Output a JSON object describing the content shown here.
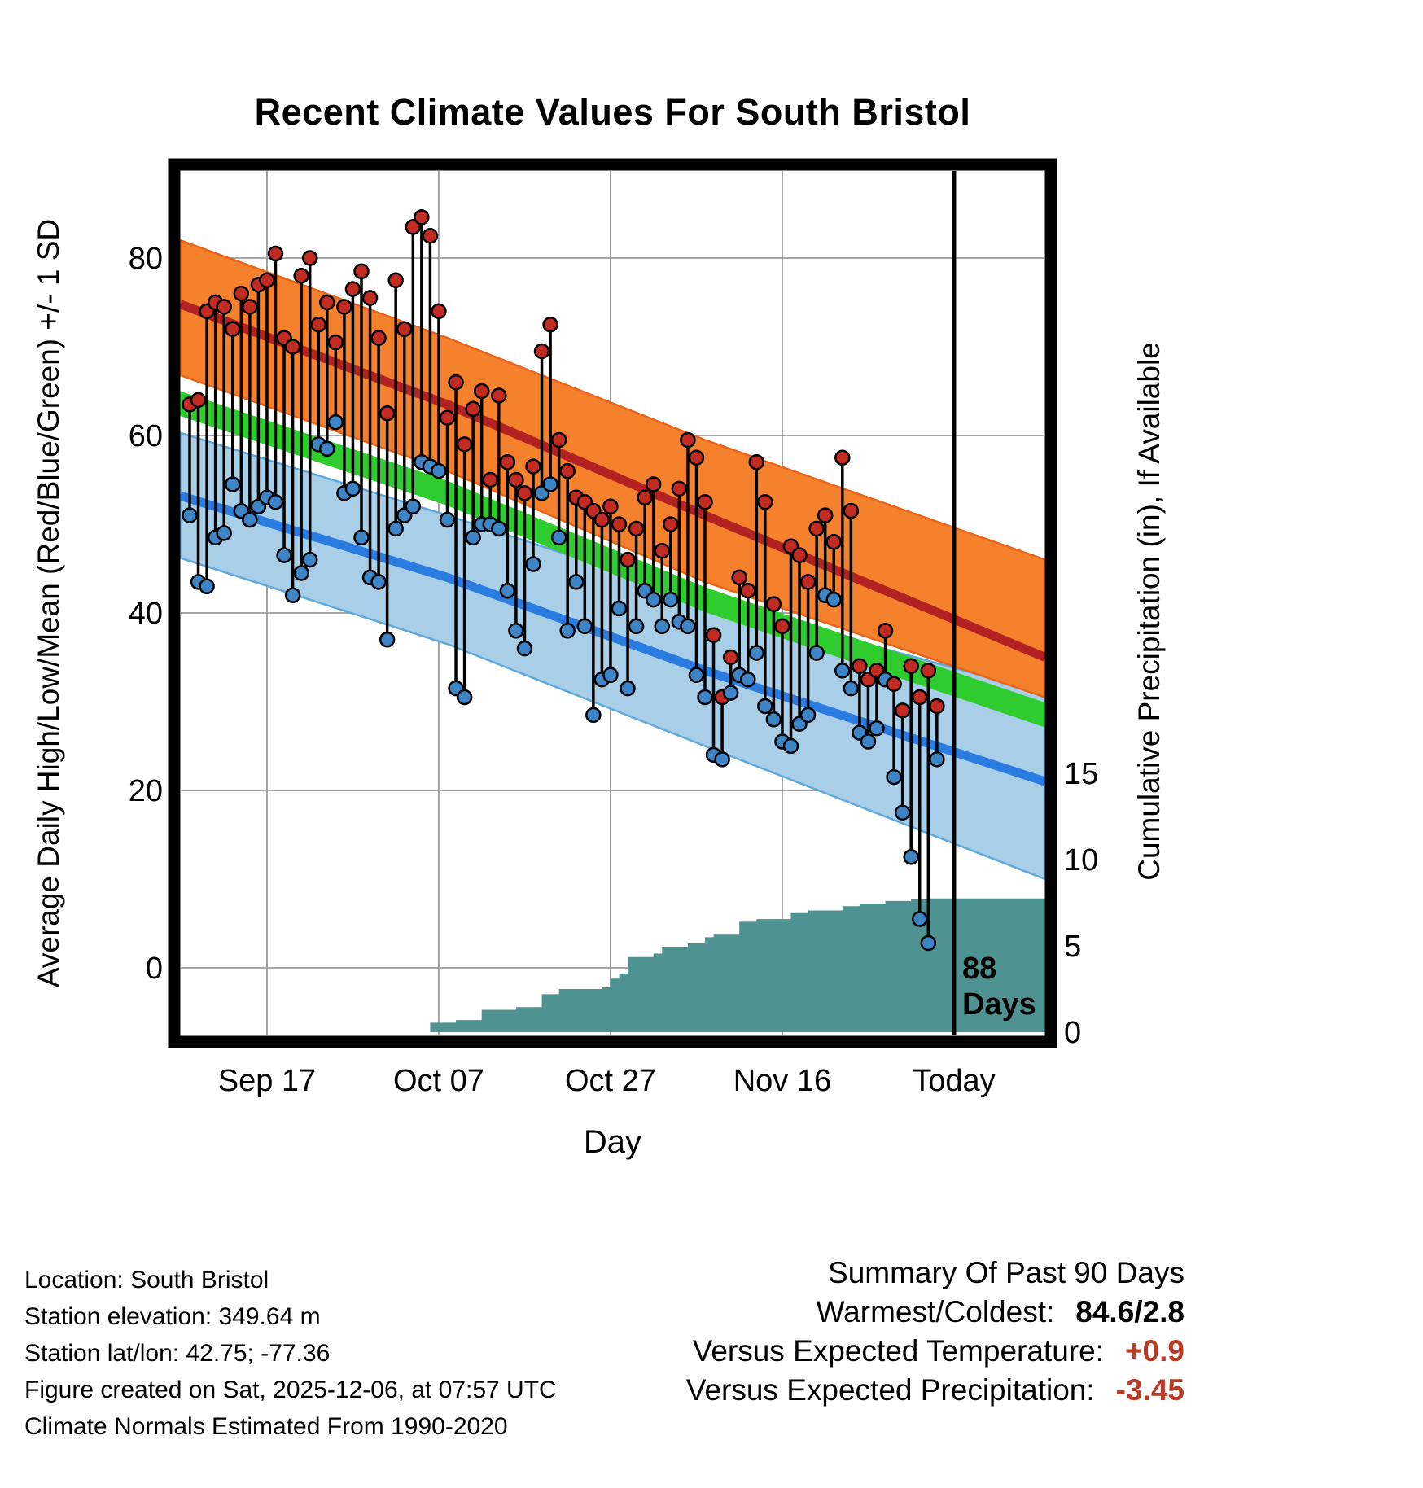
{
  "title": "Recent Climate Values For South Bristol",
  "colors": {
    "high_band": "#F5812D",
    "high_band_edge": "#E8641A",
    "high_line": "#B22222",
    "mean_band": "#2FCC2F",
    "low_band": "#A9CFE8",
    "low_band_edge": "#5FA8DC",
    "low_line": "#2B7CE0",
    "precip_fill": "#4E9292",
    "high_dot": "#C22B21",
    "low_dot": "#3D85C6",
    "stem": "#000000",
    "grid": "#999999",
    "days_label": "#5A2315",
    "negative_value": "#BB3A26",
    "plain_value": "#000000"
  },
  "footer_left": {
    "lines": [
      "Location: South Bristol",
      "Station elevation: 349.64 m",
      "Station lat/lon: 42.75; -77.36",
      "Figure created on Sat, 2025-12-06, at 07:57 UTC",
      "Climate Normals Estimated From 1990-2020"
    ]
  },
  "summary": {
    "heading": "Summary Of Past 90 Days",
    "rows": [
      {
        "label": "Warmest/Coldest:",
        "value": "84.6/2.8",
        "value_color": "#000000"
      },
      {
        "label": "Versus Expected Temperature:",
        "value": "+0.9",
        "value_color": "#BB3A26"
      },
      {
        "label": "Versus Expected Precipitation:",
        "value": "-3.45",
        "value_color": "#BB3A26"
      }
    ]
  },
  "chart_data": {
    "type": "composite",
    "title": "Recent Climate Values For South Bristol",
    "x_axis": {
      "label": "Day",
      "tick_labels": [
        "Sep 17",
        "Oct 07",
        "Oct 27",
        "Nov 16",
        "Today"
      ],
      "tick_days": [
        9,
        29,
        49,
        69,
        89
      ]
    },
    "temp_axis": {
      "label": "Average Daily High/Low/Mean (Red/Blue/Green) +/- 1 SD",
      "ticks": [
        0,
        20,
        40,
        60,
        80
      ]
    },
    "precip_axis": {
      "label": "Cumulative Precipitation (in), If Available",
      "ticks": [
        0,
        5,
        10,
        15
      ]
    },
    "annotations": {
      "days_line1": "88",
      "days_line2": "Days"
    },
    "today_day": 89,
    "days_available": 88,
    "bands": {
      "high_upper": [
        [
          -1.1,
          82
        ],
        [
          30,
          71
        ],
        [
          60,
          59.5
        ],
        [
          99.6,
          46
        ]
      ],
      "high_mean": [
        [
          -1.1,
          74.8
        ],
        [
          30,
          63.5
        ],
        [
          60,
          51
        ],
        [
          99.6,
          35
        ]
      ],
      "high_lower": [
        [
          -1.1,
          66.8
        ],
        [
          30,
          56
        ],
        [
          60,
          43.5
        ],
        [
          99.6,
          30.5
        ]
      ],
      "mean_center": [
        [
          -1.1,
          63.6
        ],
        [
          30,
          53.5
        ],
        [
          60,
          41.5
        ],
        [
          99.6,
          28.5
        ]
      ],
      "mean_halfwidth": 1.4,
      "low_upper": [
        [
          -1.1,
          60.3
        ],
        [
          30,
          51
        ],
        [
          60,
          41.5
        ],
        [
          99.6,
          31
        ]
      ],
      "low_mean": [
        [
          -1.1,
          53.2
        ],
        [
          30,
          44
        ],
        [
          60,
          33.5
        ],
        [
          99.6,
          21
        ]
      ],
      "low_lower": [
        [
          -1.1,
          46.2
        ],
        [
          30,
          36.5
        ],
        [
          60,
          25
        ],
        [
          99.6,
          10
        ]
      ]
    },
    "daily": {
      "highs": [
        63.5,
        64,
        74,
        75,
        74.5,
        72,
        76,
        74.5,
        77,
        77.5,
        80.5,
        71,
        70,
        78,
        80,
        72.5,
        75,
        70.5,
        74.5,
        76.5,
        78.5,
        75.5,
        71,
        62.5,
        77.5,
        72,
        83.5,
        84.6,
        82.5,
        74,
        62,
        66,
        59,
        63,
        65,
        55,
        64.5,
        57,
        55,
        53.5,
        56.5,
        69.5,
        72.5,
        59.5,
        56,
        53,
        52.5,
        51.5,
        50.5,
        52,
        50,
        46,
        49.5,
        53,
        54.5,
        47,
        50,
        54,
        59.5,
        57.5,
        52.5,
        37.5,
        30.5,
        35,
        44,
        42.5,
        57,
        52.5,
        41,
        38.5,
        47.5,
        46.5,
        43.5,
        49.5,
        51,
        48,
        57.5,
        51.5,
        34,
        32.5,
        33.5,
        38,
        32,
        29,
        34,
        30.5,
        33.5,
        29.5
      ],
      "lows": [
        51,
        43.5,
        43,
        48.5,
        49,
        54.5,
        51.5,
        50.5,
        52,
        53,
        52.5,
        46.5,
        42,
        44.5,
        46,
        59,
        58.5,
        61.5,
        53.5,
        54,
        48.5,
        44,
        43.5,
        37,
        49.5,
        51,
        52,
        57,
        56.5,
        56,
        50.5,
        31.5,
        30.5,
        48.5,
        50,
        50,
        49.5,
        42.5,
        38,
        36,
        45.5,
        53.5,
        54.5,
        48.5,
        38,
        43.5,
        38.5,
        28.5,
        32.5,
        33,
        40.5,
        31.5,
        38.5,
        42.5,
        41.5,
        38.5,
        41.5,
        39,
        38.5,
        33,
        30.5,
        24,
        23.5,
        31,
        33,
        32.5,
        35.5,
        29.5,
        28,
        25.5,
        25,
        27.5,
        28.5,
        35.5,
        42,
        41.5,
        33.5,
        31.5,
        26.5,
        25.5,
        27,
        32.5,
        21.5,
        17.5,
        12.5,
        5.5,
        2.8,
        23.5
      ]
    },
    "precip_steps": [
      [
        28,
        0.55
      ],
      [
        31,
        0.7
      ],
      [
        34,
        1.3
      ],
      [
        38,
        1.45
      ],
      [
        41,
        2.2
      ],
      [
        43,
        2.5
      ],
      [
        48,
        2.6
      ],
      [
        49,
        3.1
      ],
      [
        50,
        3.4
      ],
      [
        51,
        4.35
      ],
      [
        54,
        4.55
      ],
      [
        55,
        4.95
      ],
      [
        58,
        5.15
      ],
      [
        60,
        5.5
      ],
      [
        61,
        5.65
      ],
      [
        64,
        6.4
      ],
      [
        66,
        6.55
      ],
      [
        70,
        6.9
      ],
      [
        72,
        7.05
      ],
      [
        76,
        7.3
      ],
      [
        78,
        7.45
      ],
      [
        81,
        7.6
      ],
      [
        84,
        7.7
      ],
      [
        86,
        7.75
      ],
      [
        99.6,
        7.75
      ]
    ]
  }
}
